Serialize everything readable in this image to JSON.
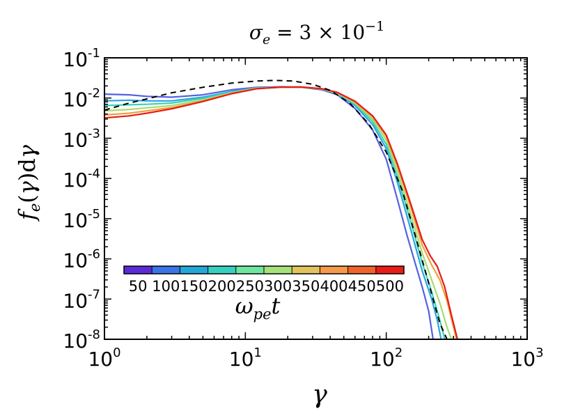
{
  "chart_data": {
    "type": "line",
    "title": "σ_e = 3 × 10^-1",
    "title_parts": {
      "sym": "σ",
      "sub": "e",
      "rest": " = 3 × 10",
      "exp": "−1"
    },
    "xlabel": "γ",
    "ylabel": "f_e(γ)dγ",
    "ylabel_parts": {
      "f": "f",
      "sub": "e",
      "open": "(",
      "g": "γ",
      "close": ")",
      "d": "d",
      "g2": "γ"
    },
    "x_scale": "log",
    "y_scale": "log",
    "xlim": [
      1,
      1000
    ],
    "ylim": [
      1e-08,
      0.1
    ],
    "x_ticks": [
      {
        "base": "10",
        "exp": "0"
      },
      {
        "base": "10",
        "exp": "1"
      },
      {
        "base": "10",
        "exp": "2"
      },
      {
        "base": "10",
        "exp": "3"
      }
    ],
    "y_ticks": [
      {
        "base": "10",
        "exp": "-1"
      },
      {
        "base": "10",
        "exp": "-2"
      },
      {
        "base": "10",
        "exp": "-3"
      },
      {
        "base": "10",
        "exp": "-4"
      },
      {
        "base": "10",
        "exp": "-5"
      },
      {
        "base": "10",
        "exp": "-6"
      },
      {
        "base": "10",
        "exp": "-7"
      },
      {
        "base": "10",
        "exp": "-8"
      }
    ],
    "grid": false,
    "legend": "colorbar inside, lower-left",
    "colorbar": {
      "label": "ω_pe t",
      "label_parts": {
        "sym": "ω",
        "sub": "pe",
        "t": "t"
      },
      "ticks": [
        "50",
        "100",
        "150",
        "200",
        "250",
        "300",
        "350",
        "400",
        "450",
        "500"
      ],
      "colors": [
        "#5b2bd8",
        "#3a74e6",
        "#23a8d8",
        "#35d0c0",
        "#6fe6a0",
        "#a8e07a",
        "#e2c45e",
        "#f59a48",
        "#f2622c",
        "#e81d18"
      ]
    },
    "series": [
      {
        "color": "#5560e0",
        "dashed": false,
        "x": [
          1.0,
          1.5,
          2.0,
          3.0,
          5.0,
          8.0,
          12.0,
          18.0,
          25.0,
          35.0,
          45.0,
          60.0,
          80.0,
          100.0,
          120.0,
          140.0,
          160.0,
          180.0,
          200.0,
          215.0
        ],
        "y": [
          0.0125,
          0.012,
          0.011,
          0.0105,
          0.012,
          0.016,
          0.0185,
          0.019,
          0.0185,
          0.016,
          0.012,
          0.0055,
          0.0016,
          0.0003,
          3e-05,
          4e-06,
          8e-07,
          2e-07,
          5e-08,
          1e-08
        ]
      },
      {
        "color": "#2aa6dc",
        "dashed": false,
        "x": [
          1.0,
          1.5,
          2.0,
          3.0,
          5.0,
          8.0,
          12.0,
          18.0,
          25.0,
          35.0,
          45.0,
          60.0,
          80.0,
          100.0,
          120.0,
          150.0,
          180.0,
          210.0,
          230.0,
          245.0
        ],
        "y": [
          0.0085,
          0.0088,
          0.0085,
          0.0085,
          0.0105,
          0.0145,
          0.018,
          0.0185,
          0.0185,
          0.0165,
          0.0125,
          0.0065,
          0.0022,
          0.00055,
          8e-05,
          5e-06,
          5e-07,
          1e-07,
          3e-08,
          1e-08
        ]
      },
      {
        "color": "#3dd1b8",
        "dashed": false,
        "x": [
          1.0,
          1.5,
          2.0,
          3.0,
          5.0,
          8.0,
          12.0,
          18.0,
          25.0,
          35.0,
          45.0,
          60.0,
          80.0,
          100.0,
          120.0,
          150.0,
          180.0,
          210.0,
          240.0,
          260.0
        ],
        "y": [
          0.0065,
          0.0068,
          0.007,
          0.0075,
          0.0098,
          0.014,
          0.0178,
          0.0185,
          0.0186,
          0.0167,
          0.013,
          0.007,
          0.0026,
          0.0007,
          0.00011,
          8e-06,
          8e-07,
          1.5e-07,
          3e-08,
          1e-08
        ]
      },
      {
        "color": "#a6dc70",
        "dashed": false,
        "x": [
          1.0,
          1.5,
          2.0,
          3.0,
          5.0,
          8.0,
          12.0,
          18.0,
          25.0,
          35.0,
          45.0,
          60.0,
          80.0,
          100.0,
          120.0,
          150.0,
          180.0,
          210.0,
          240.0,
          270.0,
          290.0
        ],
        "y": [
          0.0048,
          0.0052,
          0.0057,
          0.0065,
          0.009,
          0.0135,
          0.0175,
          0.0186,
          0.0187,
          0.0168,
          0.0133,
          0.0075,
          0.003,
          0.0009,
          0.00015,
          1.2e-05,
          1.4e-06,
          3e-07,
          8e-08,
          2e-08,
          1e-08
        ]
      },
      {
        "color": "#f0a040",
        "dashed": false,
        "x": [
          1.0,
          1.5,
          2.0,
          3.0,
          5.0,
          8.0,
          12.0,
          18.0,
          25.0,
          35.0,
          45.0,
          60.0,
          80.0,
          100.0,
          120.0,
          150.0,
          180.0,
          210.0,
          240.0,
          270.0,
          300.0,
          315.0
        ],
        "y": [
          0.0038,
          0.0042,
          0.0048,
          0.0058,
          0.0085,
          0.013,
          0.0172,
          0.0186,
          0.0188,
          0.0169,
          0.0136,
          0.008,
          0.0034,
          0.0011,
          0.0002,
          1.8e-05,
          2.2e-06,
          7e-07,
          3e-07,
          9e-08,
          2e-08,
          1e-08
        ]
      },
      {
        "color": "#e61c14",
        "dashed": false,
        "x": [
          1.0,
          1.5,
          2.0,
          3.0,
          5.0,
          8.0,
          12.0,
          18.0,
          25.0,
          35.0,
          45.0,
          60.0,
          80.0,
          100.0,
          120.0,
          150.0,
          180.0,
          205.0,
          230.0,
          260.0,
          290.0,
          320.0
        ],
        "y": [
          0.0032,
          0.0036,
          0.0042,
          0.0054,
          0.0082,
          0.0128,
          0.017,
          0.0187,
          0.0188,
          0.017,
          0.0138,
          0.0083,
          0.0036,
          0.0012,
          0.00023,
          2.2e-05,
          3e-06,
          1.2e-06,
          6.5e-07,
          2e-07,
          4e-08,
          1e-08
        ]
      },
      {
        "color": "#000000",
        "dashed": true,
        "x": [
          1.0,
          1.5,
          2.0,
          3.0,
          5.0,
          8.0,
          12.0,
          16.0,
          22.0,
          30.0,
          40.0,
          55.0,
          75.0,
          100.0,
          130.0,
          160.0,
          200.0,
          240.0,
          270.0,
          300.0
        ],
        "y": [
          0.005,
          0.0075,
          0.0095,
          0.0135,
          0.0185,
          0.0235,
          0.0265,
          0.0275,
          0.0265,
          0.022,
          0.0155,
          0.0075,
          0.0023,
          0.00045,
          5e-05,
          4e-06,
          2.5e-07,
          2.5e-08,
          1e-08,
          1e-08
        ]
      }
    ]
  }
}
